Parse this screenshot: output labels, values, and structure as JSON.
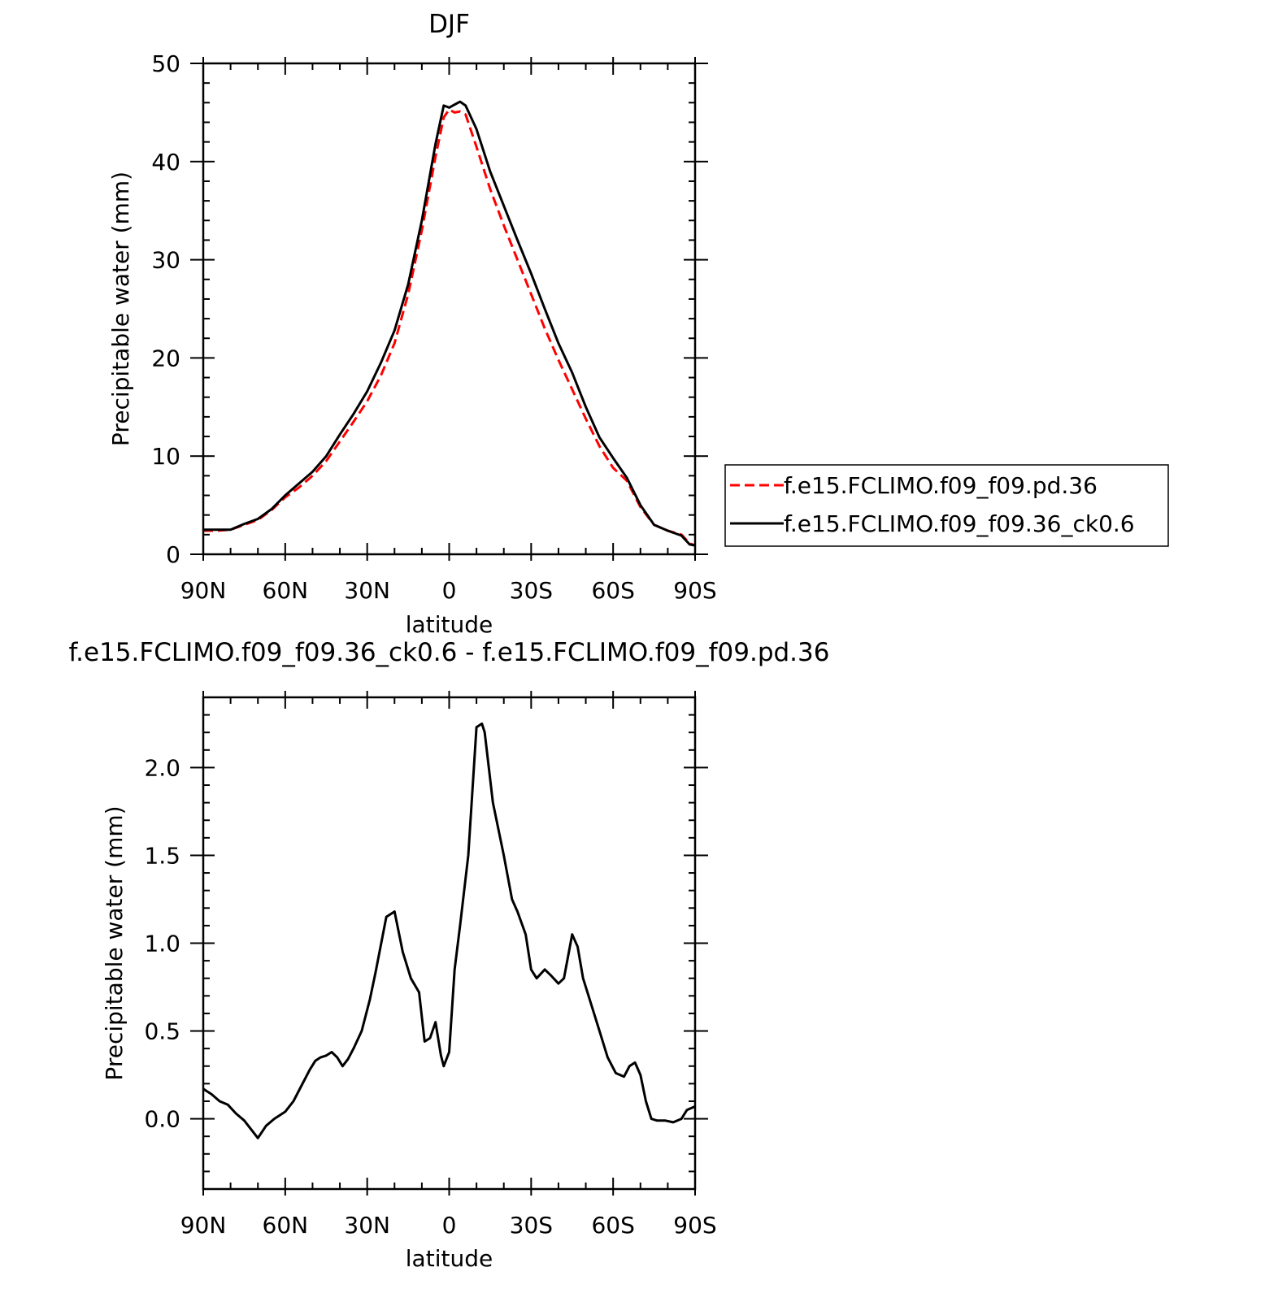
{
  "chart_data": [
    {
      "type": "line",
      "title": "DJF",
      "xlabel": "latitude",
      "ylabel": "Precipitable water (mm)",
      "xlim": [
        90,
        -90
      ],
      "ylim": [
        0,
        50
      ],
      "x_ticks": [
        {
          "value": 90,
          "label": "90N"
        },
        {
          "value": 60,
          "label": "60N"
        },
        {
          "value": 30,
          "label": "30N"
        },
        {
          "value": 0,
          "label": "0"
        },
        {
          "value": -30,
          "label": "30S"
        },
        {
          "value": -60,
          "label": "60S"
        },
        {
          "value": -90,
          "label": "90S"
        }
      ],
      "y_ticks": [
        0,
        10,
        20,
        30,
        40,
        50
      ],
      "y_tick_labels": [
        "0",
        "10",
        "20",
        "30",
        "40",
        "50"
      ],
      "legend": "right",
      "series": [
        {
          "name": "f.e15.FCLIMO.f09_f09.pd.36",
          "color": "#ff0000",
          "dash": "dashed",
          "x": [
            90,
            85,
            80,
            75,
            70,
            65,
            60,
            55,
            50,
            45,
            40,
            35,
            30,
            25,
            20,
            15,
            10,
            5,
            2,
            0,
            -2,
            -4,
            -6,
            -10,
            -15,
            -20,
            -25,
            -30,
            -35,
            -40,
            -45,
            -50,
            -55,
            -60,
            -65,
            -70,
            -75,
            -80,
            -85,
            -88,
            -90
          ],
          "y": [
            2.4,
            2.4,
            2.5,
            3.0,
            3.5,
            4.5,
            5.8,
            6.8,
            8.0,
            9.5,
            11.5,
            13.5,
            15.6,
            18.2,
            21.5,
            26.5,
            33.0,
            40.5,
            44.5,
            45.3,
            45.0,
            45.1,
            44.8,
            41.5,
            37.2,
            33.5,
            30.0,
            26.5,
            23.0,
            19.8,
            16.8,
            13.8,
            11.0,
            8.8,
            7.5,
            4.8,
            3.0,
            2.4,
            2.0,
            1.1,
            0.9
          ]
        },
        {
          "name": "f.e15.FCLIMO.f09_f09.36_ck0.6",
          "color": "#000000",
          "dash": "solid",
          "x": [
            90,
            85,
            80,
            75,
            70,
            65,
            60,
            55,
            50,
            45,
            40,
            35,
            30,
            25,
            20,
            15,
            10,
            5,
            2,
            0,
            -2,
            -4,
            -6,
            -10,
            -15,
            -20,
            -25,
            -30,
            -35,
            -40,
            -45,
            -50,
            -55,
            -60,
            -65,
            -70,
            -75,
            -80,
            -85,
            -88,
            -90
          ],
          "y": [
            2.5,
            2.5,
            2.5,
            3.1,
            3.6,
            4.6,
            6.0,
            7.2,
            8.4,
            10.0,
            12.2,
            14.3,
            16.6,
            19.5,
            22.8,
            27.5,
            34.0,
            41.8,
            45.7,
            45.5,
            45.8,
            46.1,
            45.7,
            43.3,
            39.0,
            35.5,
            32.0,
            28.6,
            25.0,
            21.5,
            18.5,
            15.0,
            11.9,
            9.8,
            7.8,
            5.0,
            3.0,
            2.4,
            1.9,
            1.0,
            0.9
          ]
        }
      ]
    },
    {
      "type": "line",
      "title": "f.e15.FCLIMO.f09_f09.36_ck0.6 - f.e15.FCLIMO.f09_f09.pd.36",
      "xlabel": "latitude",
      "ylabel": "Precipitable water (mm)",
      "xlim": [
        90,
        -90
      ],
      "ylim": [
        -0.4,
        2.4
      ],
      "x_ticks": [
        {
          "value": 90,
          "label": "90N"
        },
        {
          "value": 60,
          "label": "60N"
        },
        {
          "value": 30,
          "label": "30N"
        },
        {
          "value": 0,
          "label": "0"
        },
        {
          "value": -30,
          "label": "30S"
        },
        {
          "value": -60,
          "label": "60S"
        },
        {
          "value": -90,
          "label": "90S"
        }
      ],
      "y_ticks": [
        0.0,
        0.5,
        1.0,
        1.5,
        2.0
      ],
      "y_tick_labels": [
        "0.0",
        "0.5",
        "1.0",
        "1.5",
        "2.0"
      ],
      "series": [
        {
          "color": "#000000",
          "dash": "solid",
          "x": [
            90,
            87,
            84,
            81,
            78,
            75,
            72,
            70,
            67,
            64,
            60,
            57,
            54,
            51,
            49,
            47,
            45,
            43,
            41,
            39,
            37,
            35,
            32,
            29,
            27,
            25,
            23,
            20,
            17,
            14,
            11,
            9,
            7,
            5,
            3,
            2,
            0,
            -2,
            -4,
            -7,
            -10,
            -12,
            -13,
            -16,
            -20,
            -23,
            -25,
            -28,
            -30,
            -32,
            -35,
            -37,
            -40,
            -42,
            -45,
            -47,
            -49,
            -52,
            -55,
            -58,
            -61,
            -64,
            -66,
            -68,
            -70,
            -72,
            -74,
            -76,
            -79,
            -82,
            -85,
            -87,
            -90
          ],
          "y": [
            0.17,
            0.14,
            0.1,
            0.08,
            0.03,
            -0.01,
            -0.07,
            -0.11,
            -0.04,
            0.0,
            0.04,
            0.1,
            0.19,
            0.28,
            0.33,
            0.35,
            0.36,
            0.38,
            0.35,
            0.3,
            0.34,
            0.4,
            0.5,
            0.68,
            0.83,
            0.99,
            1.15,
            1.18,
            0.95,
            0.8,
            0.72,
            0.44,
            0.46,
            0.55,
            0.36,
            0.3,
            0.38,
            0.85,
            1.1,
            1.5,
            2.23,
            2.25,
            2.2,
            1.8,
            1.5,
            1.25,
            1.18,
            1.05,
            0.85,
            0.8,
            0.85,
            0.82,
            0.77,
            0.8,
            1.05,
            0.98,
            0.8,
            0.65,
            0.5,
            0.35,
            0.26,
            0.24,
            0.3,
            0.32,
            0.25,
            0.1,
            0.0,
            -0.01,
            -0.01,
            -0.02,
            0.0,
            0.05,
            0.07
          ]
        }
      ]
    }
  ]
}
